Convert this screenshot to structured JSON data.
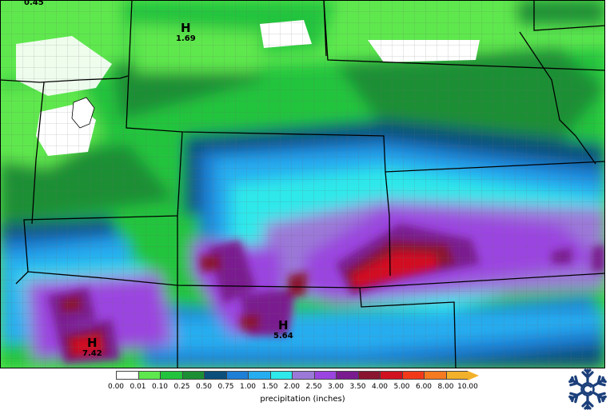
{
  "highs": [
    {
      "letter": "",
      "value": "0.45"
    },
    {
      "letter": "H",
      "value": "1.69"
    },
    {
      "letter": "H",
      "value": "5.64"
    },
    {
      "letter": "H",
      "value": "7.42"
    }
  ],
  "legend": {
    "title": "precipitation (inches)",
    "ticks": [
      "0.00",
      "0.01",
      "0.10",
      "0.25",
      "0.50",
      "0.75",
      "1.00",
      "1.50",
      "2.00",
      "2.50",
      "3.00",
      "3.50",
      "4.00",
      "5.00",
      "6.00",
      "8.00",
      "10.00"
    ],
    "colors": [
      "#ffffff",
      "#5ee84e",
      "#21c43c",
      "#1c8f35",
      "#0b4f7a",
      "#1d7fd6",
      "#26adf0",
      "#2ee8ea",
      "#9b79d8",
      "#9b45e0",
      "#7a1c8f",
      "#8a1530",
      "#d11020",
      "#f23a1a",
      "#f57a20",
      "#f2b12a"
    ]
  },
  "logo": {
    "icon": "snowflake-logo-icon",
    "color": "#1b3f7a"
  }
}
